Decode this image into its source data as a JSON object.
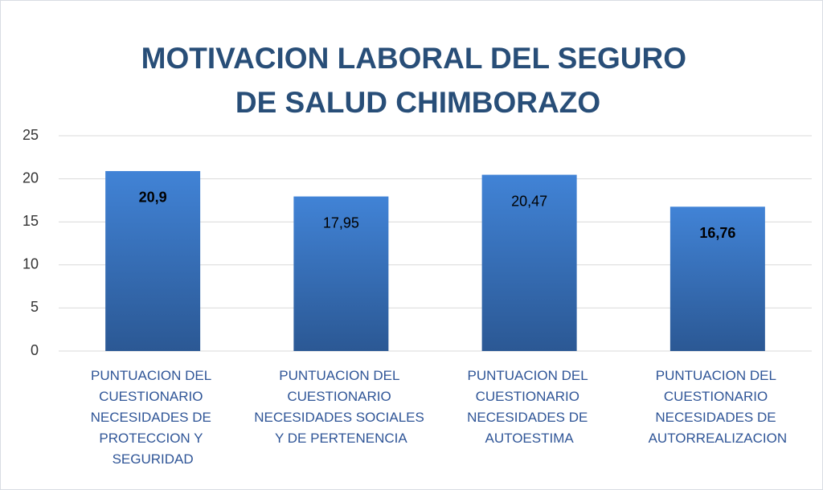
{
  "chart_data": {
    "type": "bar",
    "title": "MOTIVACION LABORAL DEL SEGURO DE SALUD CHIMBORAZO",
    "categories": [
      "PUNTUACION DEL CUESTIONARIO NECESIDADES DE PROTECCION Y SEGURIDAD",
      "PUNTUACION DEL CUESTIONARIO NECESIDADES SOCIALES Y DE PERTENENCIA",
      "PUNTUACION DEL CUESTIONARIO NECESIDADES DE AUTOESTIMA",
      "PUNTUACION DEL CUESTIONARIO NECESIDADES DE AUTORREALIZACION"
    ],
    "values": [
      20.9,
      17.95,
      20.47,
      16.76
    ],
    "value_labels": [
      "20,9",
      "17,95",
      "20,47",
      "16,76"
    ],
    "value_label_bold": [
      true,
      false,
      false,
      true
    ],
    "color": "#3a75c4",
    "ylim": [
      0,
      25
    ],
    "yticks": [
      0,
      5,
      10,
      15,
      20,
      25
    ],
    "grid": true
  }
}
